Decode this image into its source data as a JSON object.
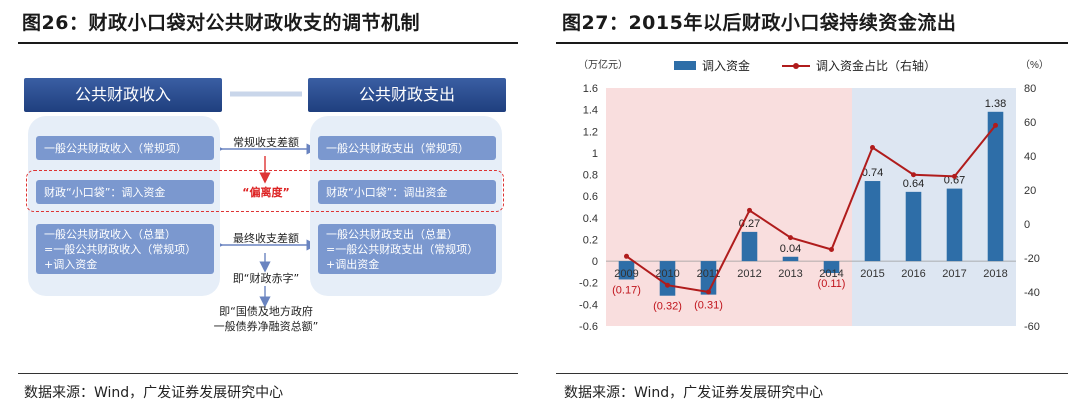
{
  "left": {
    "title": "图26：财政小口袋对公共财政收支的调节机制",
    "source": "数据来源：Wind，广发证券发展研究中心",
    "diagram": {
      "revenue_head": "公共财政收入",
      "expenditure_head": "公共财政支出",
      "regular_revenue": "一般公共财政收入（常规项）",
      "regular_expenditure": "一般公共财政支出（常规项）",
      "regular_gap_label": "常规收支差额",
      "pocket_in": "财政“小口袋”：调入资金",
      "pocket_out": "财政“小口袋”：调出资金",
      "deviation_label": "“偏离度”",
      "total_revenue": "一般公共财政收入（总量）\n=一般公共财政收入（常规项）\n+调入资金",
      "total_expenditure": "一般公共财政支出（总量）\n=一般公共财政支出（常规项）\n+调出资金",
      "final_gap_label": "最终收支差额",
      "deficit_label": "即“财政赤字”",
      "debt_label": "即“国债及地方政府\n一般债券净融资总额”"
    }
  },
  "right": {
    "title": "图27：2015年以后财政小口袋持续资金流出",
    "source": "数据来源：Wind，广发证券发展研究中心"
  },
  "chart_data": {
    "type": "bar",
    "categories": [
      "2009",
      "2010",
      "2011",
      "2012",
      "2013",
      "2014",
      "2015",
      "2016",
      "2017",
      "2018"
    ],
    "series": [
      {
        "name": "调入资金",
        "type": "bar",
        "axis": "left",
        "color": "#2e6ea8",
        "values": [
          -0.17,
          -0.32,
          -0.31,
          0.27,
          0.04,
          -0.11,
          0.74,
          0.64,
          0.67,
          1.38
        ],
        "data_labels": [
          "(0.17)",
          "(0.32)",
          "(0.31)",
          "0.27",
          "0.04",
          "(0.11)",
          "0.74",
          "0.64",
          "0.67",
          "1.38"
        ]
      },
      {
        "name": "调入资金占比（右轴）",
        "type": "line",
        "axis": "right",
        "color": "#b01c1c",
        "values": [
          -19,
          -36,
          -40,
          8,
          -8,
          -15,
          45,
          29,
          28,
          58
        ]
      }
    ],
    "left_axis_unit": "（万亿元）",
    "right_axis_unit": "（%）",
    "ylim": [
      -0.6,
      1.6
    ],
    "yticks": [
      "-0.6",
      "-0.4",
      "-0.2",
      "0",
      "0.2",
      "0.4",
      "0.6",
      "0.8",
      "1",
      "1.2",
      "1.4",
      "1.6"
    ],
    "y2lim": [
      -60,
      80
    ],
    "y2ticks": [
      "-60",
      "-40",
      "-20",
      "0",
      "20",
      "40",
      "60",
      "80"
    ],
    "shaded_regions": [
      {
        "from": "2009",
        "to": "2014",
        "color": "#f9dede"
      },
      {
        "from": "2015",
        "to": "2018",
        "color": "#dde6f2"
      }
    ],
    "legend_position": "top"
  }
}
